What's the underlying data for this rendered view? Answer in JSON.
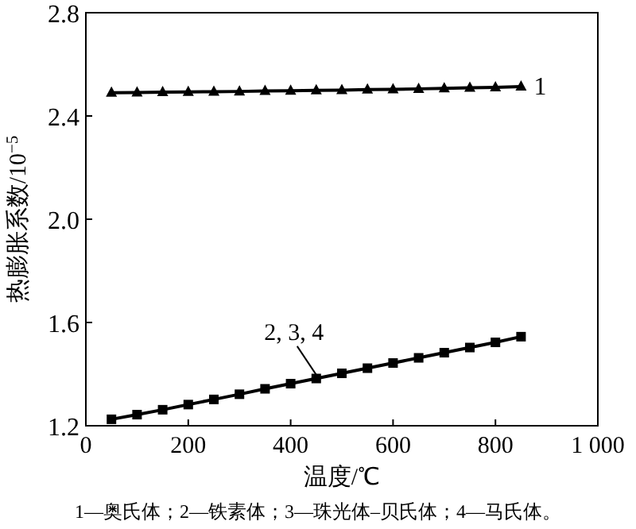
{
  "chart_data": {
    "type": "line",
    "xlabel": "温度/℃",
    "ylabel": "热膨胀系数/10$^{−5}$",
    "x": [
      50,
      100,
      150,
      200,
      250,
      300,
      350,
      400,
      450,
      500,
      550,
      600,
      650,
      700,
      750,
      800,
      850
    ],
    "series": [
      {
        "name": "1",
        "color": "#000000",
        "marker": "triangle",
        "values": [
          2.49,
          2.491,
          2.492,
          2.493,
          2.494,
          2.495,
          2.497,
          2.498,
          2.499,
          2.5,
          2.502,
          2.503,
          2.505,
          2.507,
          2.509,
          2.511,
          2.514
        ]
      },
      {
        "color": "#000000",
        "marker": "square",
        "values": [
          1.225,
          1.243,
          1.262,
          1.282,
          1.302,
          1.322,
          1.343,
          1.363,
          1.383,
          1.403,
          1.423,
          1.443,
          1.463,
          1.483,
          1.503,
          1.523,
          1.545
        ]
      }
    ],
    "xlim": [
      0,
      1000
    ],
    "xticks": [
      0,
      200,
      400,
      600,
      800,
      {
        "value": 1000,
        "label": "1 000"
      }
    ],
    "ylim": [
      1.2,
      2.8
    ],
    "yticks": [
      1.2,
      1.6,
      {
        "value": 2,
        "label": "2.0"
      },
      2.4,
      2.8
    ],
    "grid": false,
    "line_style": "solid",
    "annotations": [
      {
        "text": "2, 3, 4",
        "x": 450,
        "y": 1.385
      },
      "1—奥氏体；2—铁素体；3—珠光体–贝氏体；4—马氏体。"
    ]
  }
}
